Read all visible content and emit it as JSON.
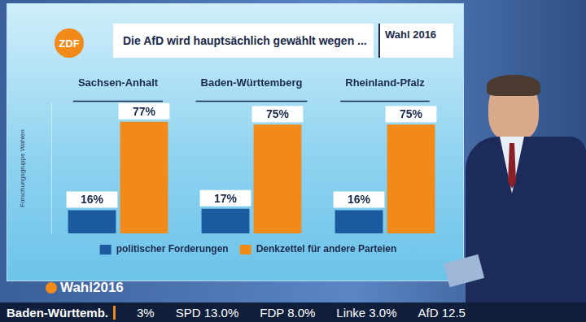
{
  "logo": "ZDF",
  "badge": "Wahl 2016",
  "footer_logo": "Wahl2016",
  "ticker": [
    "Baden-Württemb.",
    "3%",
    "SPD 13.0%",
    "FDP 8.0%",
    "Linke 3.0%",
    "AfD 12.5"
  ],
  "chart_data": {
    "type": "bar",
    "title": "Die AfD wird hauptsächlich gewählt wegen ...",
    "source": "Forschungsgruppe Wahlen",
    "categories": [
      "Sachsen-Anhalt",
      "Baden-Württemberg",
      "Rheinland-Pfalz"
    ],
    "series": [
      {
        "name": "politischer Forderungen",
        "color": "#1c5aa0",
        "values": [
          16,
          17,
          16
        ],
        "value_labels": [
          "16%",
          "17%",
          "16%"
        ]
      },
      {
        "name": "Denkzettel für andere Parteien",
        "color": "#f28a1a",
        "values": [
          77,
          75,
          75
        ],
        "value_labels": [
          "77%",
          "75%",
          "75%"
        ]
      }
    ],
    "ylim": [
      0,
      90
    ],
    "data_labels": true,
    "tick_labels": "x",
    "grid": false,
    "legend": "bottom"
  }
}
